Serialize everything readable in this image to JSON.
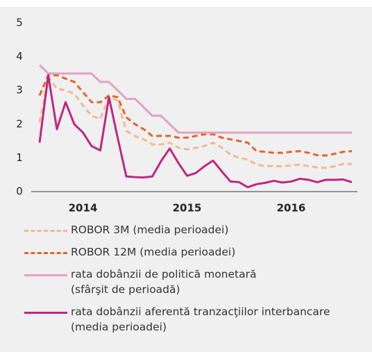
{
  "chart_data": {
    "type": "line",
    "categories": [
      null,
      null,
      null,
      null,
      null,
      "2014",
      null,
      null,
      null,
      null,
      null,
      null,
      null,
      null,
      null,
      null,
      null,
      "2015",
      null,
      null,
      null,
      null,
      null,
      null,
      null,
      null,
      null,
      null,
      null,
      "2016",
      null,
      null,
      null,
      null,
      null,
      null,
      null
    ],
    "ylim": [
      0,
      5
    ],
    "yticks": [
      0,
      1,
      2,
      3,
      4,
      5
    ],
    "series": [
      {
        "name": "ROBOR 3M (media perioadei)",
        "color": "#f4b88e",
        "dashed": true,
        "values": [
          2.05,
          3.4,
          3.05,
          3.0,
          2.9,
          2.55,
          2.25,
          2.15,
          2.8,
          2.7,
          1.8,
          1.65,
          1.55,
          1.4,
          1.4,
          1.45,
          1.3,
          1.25,
          1.3,
          1.35,
          1.45,
          1.3,
          1.1,
          1.0,
          0.95,
          0.8,
          0.76,
          0.76,
          0.75,
          0.78,
          0.8,
          0.75,
          0.72,
          0.7,
          0.75,
          0.82,
          0.82
        ]
      },
      {
        "name": "ROBOR 12M (media perioadei)",
        "color": "#e8622a",
        "dashed": true,
        "values": [
          2.85,
          3.45,
          3.45,
          3.35,
          3.25,
          2.95,
          2.65,
          2.65,
          2.85,
          2.8,
          2.2,
          2.0,
          1.85,
          1.65,
          1.65,
          1.65,
          1.6,
          1.6,
          1.65,
          1.7,
          1.7,
          1.6,
          1.55,
          1.5,
          1.45,
          1.2,
          1.18,
          1.15,
          1.15,
          1.18,
          1.2,
          1.15,
          1.08,
          1.07,
          1.12,
          1.18,
          1.2
        ]
      },
      {
        "name": "rata dobânzii de politică monetară\n(sfârşit de perioadă)",
        "color": "#e3a0c3",
        "dashed": false,
        "values": [
          3.75,
          3.5,
          3.5,
          3.5,
          3.5,
          3.5,
          3.5,
          3.25,
          3.25,
          3.0,
          2.75,
          2.75,
          2.5,
          2.25,
          2.25,
          2.0,
          1.75,
          1.75,
          1.75,
          1.75,
          1.75,
          1.75,
          1.75,
          1.75,
          1.75,
          1.75,
          1.75,
          1.75,
          1.75,
          1.75,
          1.75,
          1.75,
          1.75,
          1.75,
          1.75,
          1.75,
          1.75
        ]
      },
      {
        "name": "rata dobânzii aferentă tranzacţiilor interbancare\n(media perioadei)",
        "color": "#c0267f",
        "dashed": false,
        "values": [
          1.45,
          3.45,
          1.85,
          2.65,
          2.0,
          1.75,
          1.35,
          1.22,
          2.8,
          1.6,
          0.45,
          0.43,
          0.42,
          0.45,
          0.9,
          1.28,
          0.85,
          0.47,
          0.55,
          0.75,
          0.92,
          0.6,
          0.3,
          0.28,
          0.13,
          0.22,
          0.26,
          0.32,
          0.27,
          0.3,
          0.38,
          0.35,
          0.28,
          0.35,
          0.35,
          0.36,
          0.28
        ]
      }
    ]
  }
}
